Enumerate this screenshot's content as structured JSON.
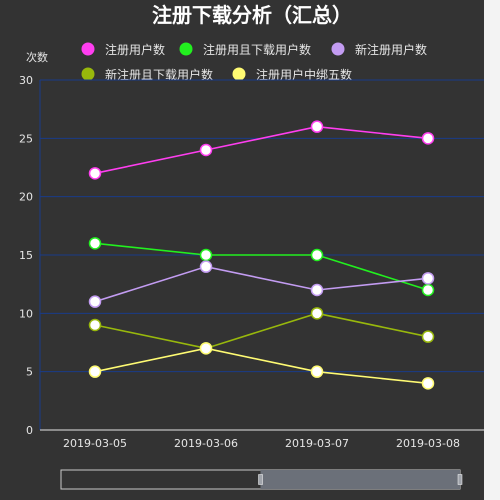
{
  "chart_data": {
    "type": "line",
    "title": "注册下载分析（汇总）",
    "ylabel": "次数",
    "xlabel": "",
    "categories": [
      "2019-03-05",
      "2019-03-06",
      "2019-03-07",
      "2019-03-08"
    ],
    "ylim": [
      0,
      30
    ],
    "yticks": [
      0,
      5,
      10,
      15,
      20,
      25,
      30
    ],
    "grid": true,
    "legend_position": "top",
    "series": [
      {
        "name": "注册用户数",
        "color": "#ff3ef0",
        "values": [
          22,
          24,
          26,
          25
        ]
      },
      {
        "name": "注册用且下载用户数",
        "color": "#22f01f",
        "values": [
          16,
          15,
          15,
          12
        ]
      },
      {
        "name": "新注册用户数",
        "color": "#c39cf2",
        "values": [
          11,
          14,
          12,
          13
        ]
      },
      {
        "name": "新注册且下载用户数",
        "color": "#98b80c",
        "values": [
          9,
          7,
          10,
          8
        ]
      },
      {
        "name": "注册用户中绑五数",
        "color": "#fffb73",
        "values": [
          5,
          7,
          5,
          4
        ]
      }
    ]
  },
  "colors": {
    "background": "#333333",
    "grid": "#1a3b8a",
    "axis": "#e6e6e6"
  },
  "data_zoom": {
    "start": 0,
    "end": 100
  }
}
